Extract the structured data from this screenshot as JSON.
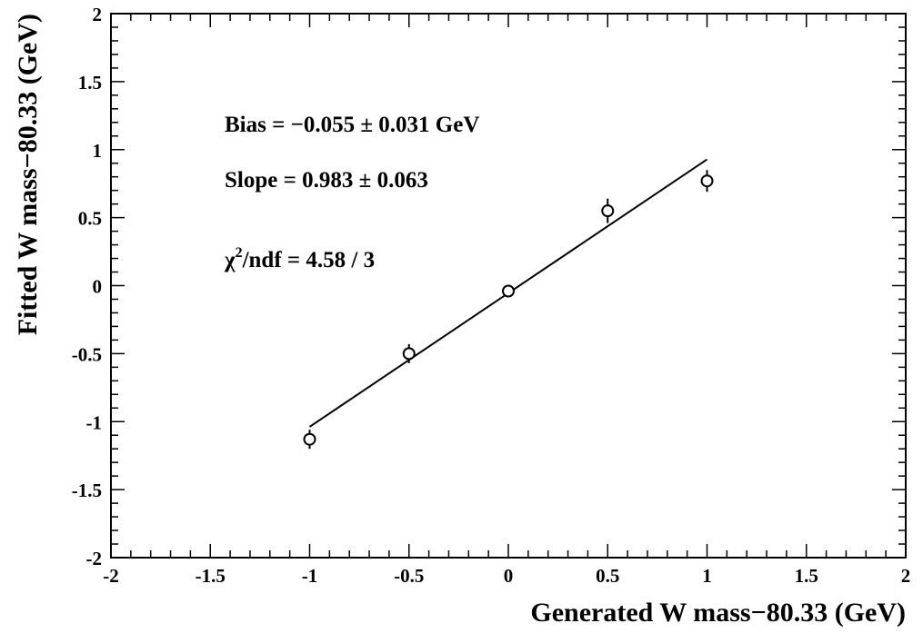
{
  "chart_data": {
    "type": "scatter",
    "xlabel": "Generated W mass−80.33 (GeV)",
    "ylabel": "Fitted W mass−80.33 (GeV)",
    "xlim": [
      -2,
      2
    ],
    "ylim": [
      -2,
      2
    ],
    "x_ticks": [
      "-2",
      "-1.5",
      "-1",
      "-0.5",
      "0",
      "0.5",
      "1",
      "1.5",
      "2"
    ],
    "y_ticks": [
      "-2",
      "-1.5",
      "-1",
      "-0.5",
      "0",
      "0.5",
      "1",
      "1.5",
      "2"
    ],
    "grid": false,
    "series": [
      {
        "x": [
          -1,
          -0.5,
          0,
          0.5,
          1
        ],
        "y": [
          -1.13,
          -0.5,
          -0.04,
          0.55,
          0.77
        ],
        "yerr": [
          0.07,
          0.07,
          0.03,
          0.09,
          0.08
        ]
      }
    ],
    "fit": {
      "bias": -0.055,
      "slope": 0.983,
      "x_range": [
        -1,
        1
      ]
    },
    "annotations": {
      "bias": "Bias = −0.055 ± 0.031 GeV",
      "slope": "Slope =  0.983 ± 0.063",
      "chi_prefix": "χ",
      "chi_sup": "2",
      "chi_rest": "/ndf = 4.58 / 3"
    }
  }
}
